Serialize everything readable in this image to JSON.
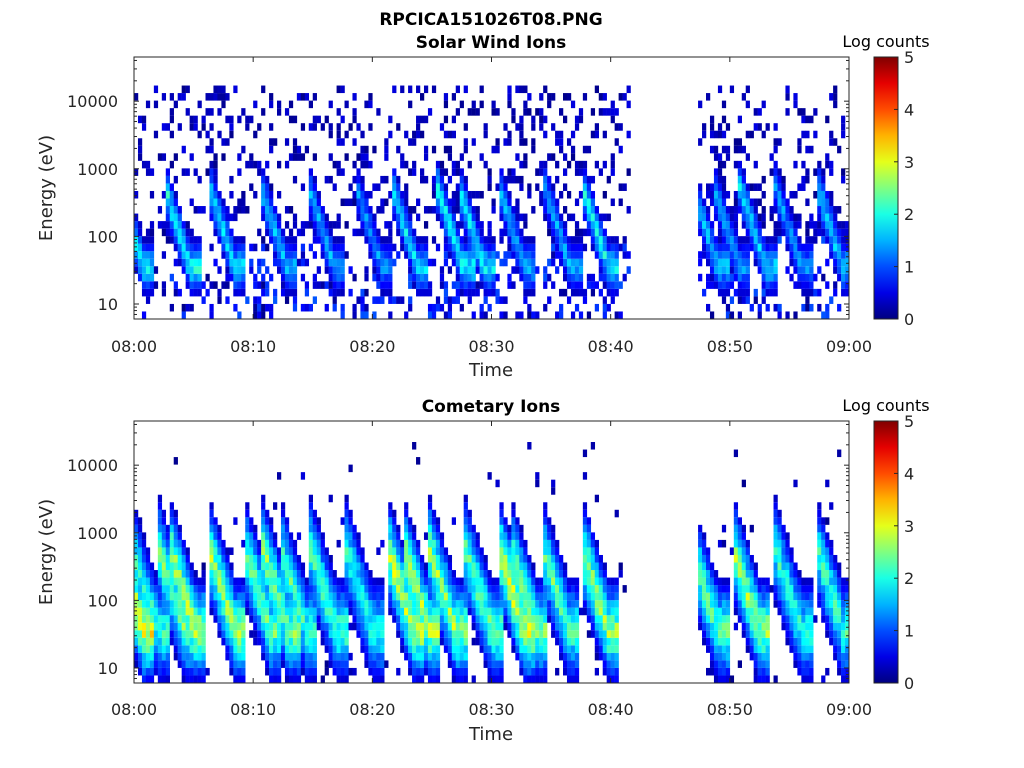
{
  "figure_title": "RPCICA151026T08.PNG",
  "chart_data": [
    {
      "type": "heatmap",
      "title": "Solar Wind Ions",
      "xlabel": "Time",
      "ylabel": "Energy (eV)",
      "x_ticks": [
        "08:00",
        "08:10",
        "08:20",
        "08:30",
        "08:40",
        "08:50",
        "09:00"
      ],
      "y_ticks": [
        "10",
        "100",
        "1000",
        "10000"
      ],
      "y_scale": "log",
      "ylim": [
        6,
        45000
      ],
      "xlim": [
        "08:00",
        "09:00"
      ],
      "colorbar": {
        "label": "Log counts",
        "ticks": [
          "0",
          "1",
          "2",
          "3",
          "4",
          "5"
        ],
        "range": [
          0,
          5
        ],
        "colormap": "jet"
      },
      "data_gap": [
        "08:41.5",
        "08:47.5"
      ],
      "bursts": [
        {
          "t": 0.8,
          "level": 2.0
        },
        {
          "t": 4.7,
          "level": 2.2
        },
        {
          "t": 8.5,
          "level": 2.0
        },
        {
          "t": 12.8,
          "level": 1.8
        },
        {
          "t": 16.8,
          "level": 1.6
        },
        {
          "t": 20.8,
          "level": 1.5
        },
        {
          "t": 23.8,
          "level": 1.9
        },
        {
          "t": 27.6,
          "level": 2.1
        },
        {
          "t": 29.4,
          "level": 2.0
        },
        {
          "t": 32.8,
          "level": 1.7
        },
        {
          "t": 36.6,
          "level": 1.6
        },
        {
          "t": 39.8,
          "level": 2.1
        },
        {
          "t": 49.0,
          "level": 1.8
        },
        {
          "t": 50.8,
          "level": 1.6
        },
        {
          "t": 53.0,
          "level": 1.9
        },
        {
          "t": 56.0,
          "level": 1.5
        },
        {
          "t": 59.5,
          "level": 1.9
        }
      ]
    },
    {
      "type": "heatmap",
      "title": "Cometary Ions",
      "xlabel": "Time",
      "ylabel": "Energy (eV)",
      "x_ticks": [
        "08:00",
        "08:10",
        "08:20",
        "08:30",
        "08:40",
        "08:50",
        "09:00"
      ],
      "y_ticks": [
        "10",
        "100",
        "1000",
        "10000"
      ],
      "y_scale": "log",
      "ylim": [
        6,
        45000
      ],
      "xlim": [
        "08:00",
        "09:00"
      ],
      "colorbar": {
        "label": "Log counts",
        "ticks": [
          "0",
          "1",
          "2",
          "3",
          "4",
          "5"
        ],
        "range": [
          0,
          5
        ],
        "colormap": "jet"
      },
      "data_gap": [
        "08:41.5",
        "08:47.5"
      ],
      "bursts": [
        {
          "t": 0.8,
          "level": 3.4
        },
        {
          "t": 2.0,
          "level": 2.4
        },
        {
          "t": 4.3,
          "level": 2.7
        },
        {
          "t": 5.2,
          "level": 3.0
        },
        {
          "t": 8.5,
          "level": 2.9
        },
        {
          "t": 11.5,
          "level": 2.6
        },
        {
          "t": 13.0,
          "level": 2.8
        },
        {
          "t": 14.5,
          "level": 2.4
        },
        {
          "t": 17.0,
          "level": 2.5
        },
        {
          "t": 20.0,
          "level": 2.3
        },
        {
          "t": 23.5,
          "level": 3.1
        },
        {
          "t": 24.8,
          "level": 3.0
        },
        {
          "t": 27.0,
          "level": 2.9
        },
        {
          "t": 30.0,
          "level": 2.6
        },
        {
          "t": 32.8,
          "level": 3.3
        },
        {
          "t": 33.8,
          "level": 2.7
        },
        {
          "t": 36.5,
          "level": 2.5
        },
        {
          "t": 39.8,
          "level": 2.9
        },
        {
          "t": 49.0,
          "level": 2.6
        },
        {
          "t": 52.5,
          "level": 2.9
        },
        {
          "t": 56.0,
          "level": 2.3
        },
        {
          "t": 59.5,
          "level": 2.4
        }
      ]
    }
  ]
}
